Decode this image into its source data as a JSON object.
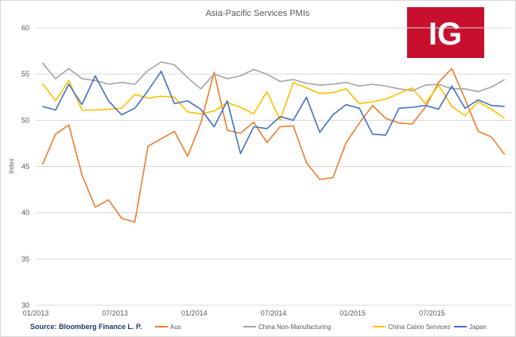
{
  "chart_data": {
    "type": "line",
    "title": "Asia-Pacific Services PMIs",
    "ylabel": "Index",
    "xlabel": "",
    "ylim": [
      30,
      60
    ],
    "yticks": [
      30,
      35,
      40,
      45,
      50,
      55,
      60
    ],
    "grid": true,
    "legend_position": "bottom",
    "x_tick_labels": [
      "01/2013",
      "07/2013",
      "01/2014",
      "07/2014",
      "01/2015",
      "07/2015"
    ],
    "num_points": 36,
    "series": [
      {
        "name": "Aus",
        "color": "#ed7d31",
        "values": [
          45.2,
          48.5,
          49.5,
          44.1,
          40.6,
          41.4,
          39.4,
          39.0,
          47.2,
          48.0,
          48.8,
          46.1,
          49.7,
          55.2,
          48.9,
          48.6,
          49.8,
          47.6,
          49.3,
          49.4,
          45.4,
          43.6,
          43.8,
          47.6,
          49.7,
          51.6,
          50.2,
          49.7,
          49.6,
          51.4,
          54.1,
          55.6,
          52.3,
          48.8,
          48.2,
          46.3
        ]
      },
      {
        "name": "China Non-Manufacturing",
        "color": "#a5a5a5",
        "values": [
          56.2,
          54.5,
          55.6,
          54.5,
          54.3,
          53.9,
          54.1,
          53.9,
          55.4,
          56.3,
          56.0,
          54.6,
          53.4,
          55.0,
          54.5,
          54.8,
          55.5,
          55.0,
          54.2,
          54.4,
          54.0,
          53.8,
          53.9,
          54.1,
          53.7,
          53.9,
          53.7,
          53.4,
          53.2,
          53.8,
          53.9,
          53.4,
          53.4,
          53.1,
          53.6,
          54.4
        ]
      },
      {
        "name": "China Caixin Services",
        "color": "#ffc000",
        "values": [
          54.0,
          52.1,
          54.3,
          51.1,
          51.1,
          51.2,
          51.3,
          52.8,
          52.4,
          52.6,
          52.5,
          50.9,
          50.7,
          51.0,
          51.9,
          51.4,
          50.7,
          53.1,
          50.0,
          54.1,
          53.5,
          52.9,
          53.0,
          53.4,
          51.8,
          52.0,
          52.3,
          52.9,
          53.5,
          51.8,
          53.8,
          51.5,
          50.5,
          52.0,
          51.2,
          50.2
        ]
      },
      {
        "name": "Japan",
        "color": "#4472c4",
        "values": [
          51.5,
          51.1,
          53.9,
          51.7,
          54.8,
          52.1,
          50.6,
          51.3,
          53.2,
          55.3,
          51.8,
          52.1,
          51.2,
          49.3,
          52.1,
          46.4,
          49.3,
          49.1,
          50.4,
          50.0,
          52.5,
          48.7,
          50.6,
          51.7,
          51.3,
          48.5,
          48.4,
          51.3,
          51.4,
          51.6,
          51.2,
          53.7,
          51.3,
          52.2,
          51.6,
          51.5
        ]
      }
    ]
  },
  "source_text": "Source: Bloomberg Finance L. P.",
  "logo": {
    "text": "IG",
    "bg": "#c8102e"
  }
}
